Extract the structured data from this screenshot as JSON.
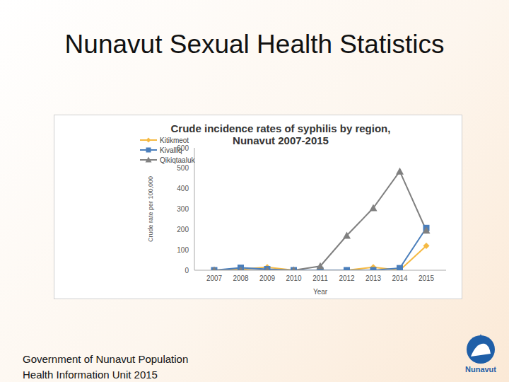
{
  "slide": {
    "title": "Nunavut Sexual Health Statistics",
    "footer": [
      "Government of Nunavut Population",
      "Health Information Unit 2015"
    ],
    "logo_text": "Nunavut"
  },
  "chart_data": {
    "type": "line",
    "title": "Crude incidence rates of syphilis by region, Nunavut 2007-2015",
    "x_label": "Year",
    "y_label": "Crude rate per 100,000",
    "categories": [
      "2007",
      "2008",
      "2009",
      "2010",
      "2011",
      "2012",
      "2013",
      "2014",
      "2015"
    ],
    "series": [
      {
        "name": "Kitikmeot",
        "color": "#f5b942",
        "marker": "diamond",
        "values": [
          0,
          5,
          15,
          0,
          0,
          0,
          15,
          0,
          120
        ]
      },
      {
        "name": "Kivalliq",
        "color": "#4a7ebb",
        "marker": "square",
        "values": [
          0,
          12,
          5,
          0,
          0,
          0,
          0,
          10,
          207
        ]
      },
      {
        "name": "Qikiqtaaluk",
        "color": "#808080",
        "marker": "triangle",
        "values": [
          0,
          0,
          0,
          0,
          20,
          170,
          305,
          485,
          195
        ]
      }
    ],
    "ylim": [
      0,
      600
    ],
    "yticks": [
      0,
      100,
      200,
      300,
      400,
      500,
      600
    ],
    "grid": false,
    "legend": "upper left"
  }
}
